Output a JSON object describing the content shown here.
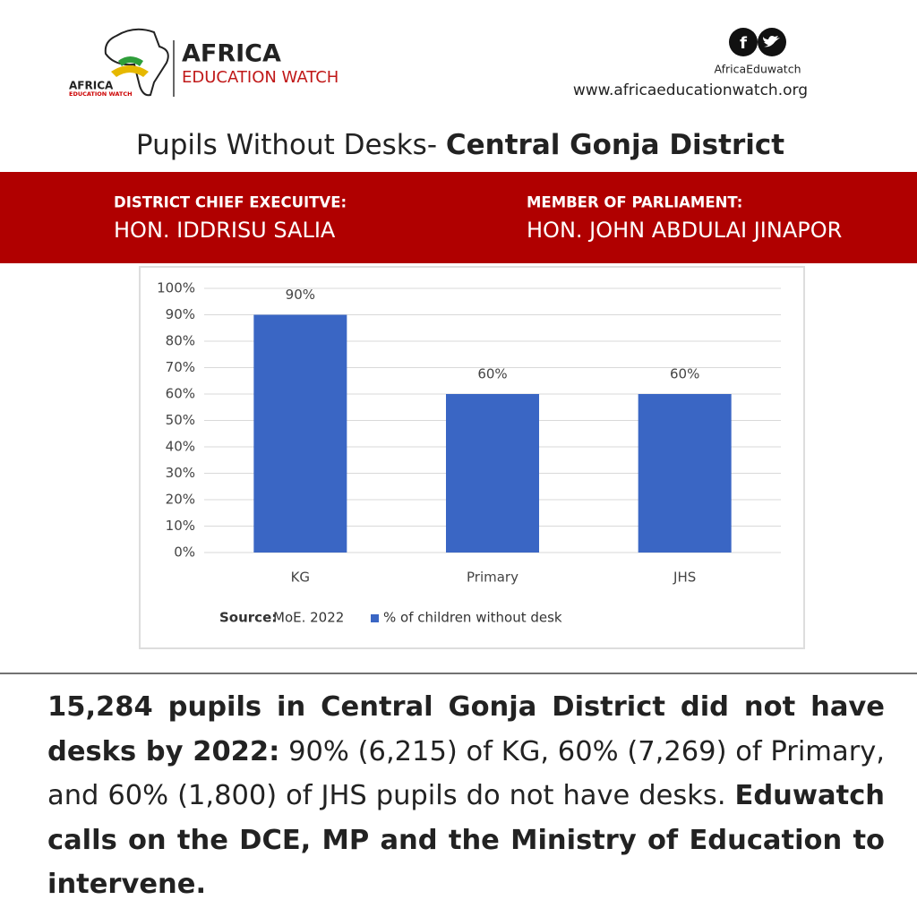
{
  "header": {
    "logo_small": [
      "AFRICA",
      "EDUCATION WATCH"
    ],
    "brand": "AFRICA",
    "brand_sub": "EDUCATION WATCH",
    "social_icon": "f",
    "handle": "AfricaEduwatch",
    "url": "www.africaeducationwatch.org"
  },
  "title": {
    "plain": "Pupils Without Desks- ",
    "bold": "Central Gonja District"
  },
  "officials": [
    {
      "role": "DISTRICT CHIEF EXECUITVE:",
      "name": "HON. IDDRISU SALIA"
    },
    {
      "role": "MEMBER OF PARLIAMENT:",
      "name": "HON. JOHN ABDULAI JINAPOR"
    }
  ],
  "chart_data": {
    "type": "bar",
    "categories": [
      "KG",
      "Primary",
      "JHS"
    ],
    "series": [
      {
        "name": "% of children without desk",
        "color": "#3a66c4",
        "values": [
          90,
          60,
          60
        ],
        "value_labels": [
          "90%",
          "60%",
          "60%"
        ]
      }
    ],
    "ylim": [
      0,
      100
    ],
    "yticks": [
      {
        "value": 0,
        "label": "0%"
      },
      {
        "value": 10,
        "label": "10%"
      },
      {
        "value": 20,
        "label": "20%"
      },
      {
        "value": 30,
        "label": "30%"
      },
      {
        "value": 40,
        "label": "40%"
      },
      {
        "value": 50,
        "label": "50%"
      },
      {
        "value": 60,
        "label": "60%"
      },
      {
        "value": 70,
        "label": "70%"
      },
      {
        "value": 80,
        "label": "80%"
      },
      {
        "value": 90,
        "label": "90%"
      },
      {
        "value": 100,
        "label": "100%"
      }
    ],
    "grid": true,
    "source_label": "Source:",
    "source": "MoE. 2022"
  },
  "footer": [
    {
      "text": "15,284 pupils in Central Gonja District did not have desks by 2022:",
      "bold": true
    },
    {
      "text": " 90% (6,215) of KG, 60% (7,269) of Primary, and 60% (1,800) of JHS pupils do not have desks. ",
      "bold": false
    },
    {
      "text": "Eduwatch calls on the DCE, MP and the Ministry of Education to intervene.",
      "bold": true
    }
  ]
}
